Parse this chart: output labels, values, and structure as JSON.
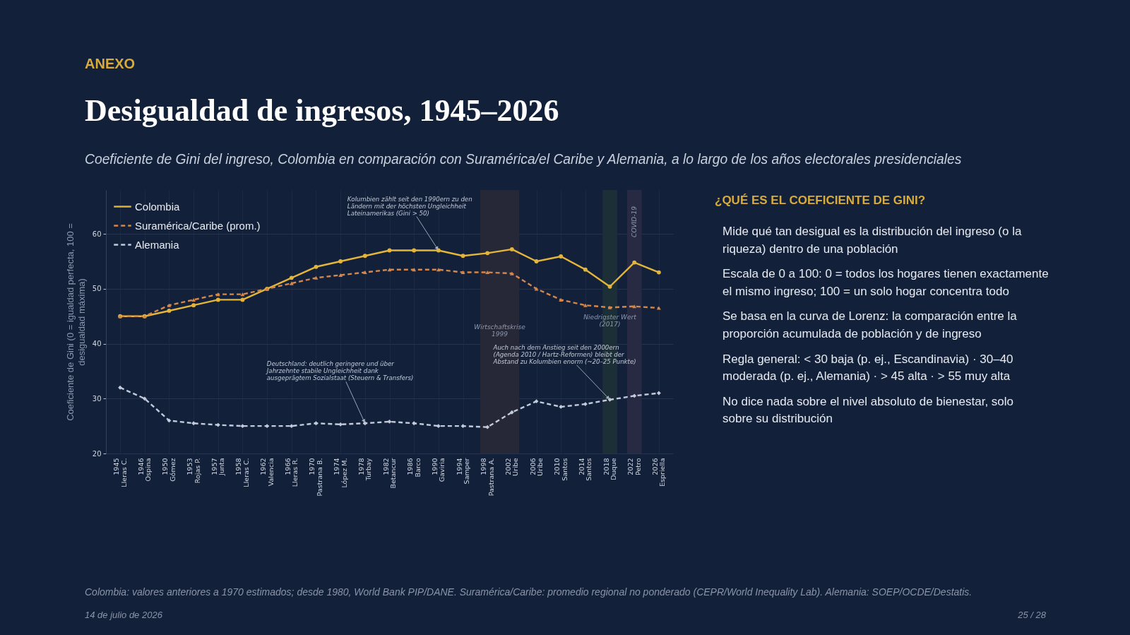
{
  "chart_data": [
    {
      "type": "line",
      "title": "Desigualdad de ingresos, 1945–2026",
      "subtitle": "Coeficiente de Gini del ingreso, Colombia en comparación con Suramérica/el Caribe y Alemania, a lo largo de los años electorales presidenciales",
      "ylabel": "Coeficiente de Gini (0 = igualdad perfecta, 100 = desigualdad máxima)",
      "categories": [
        "1945 Lleras C.",
        "1946 Ospina",
        "1950 Gómez",
        "1953 Rojas P.",
        "1957 Junta",
        "1958 Lleras C.",
        "1962 Valencia",
        "1966 Lleras R.",
        "1970 Pastrana B.",
        "1974 López M.",
        "1978 Turbay",
        "1982 Betancur",
        "1986 Barco",
        "1990 Gaviria",
        "1994 Samper",
        "1998 Pastrana A.",
        "2002 Uribe",
        "2006 Uribe",
        "2010 Santos",
        "2014 Santos",
        "2018 Duque",
        "2022 Petro",
        "2026 Espriella"
      ],
      "series": [
        {
          "name": "Colombia",
          "color": "#e3b53b",
          "marker": "circle",
          "line_style": "solid",
          "values": [
            45,
            45,
            46,
            47,
            48,
            48,
            50,
            52,
            54,
            55,
            56,
            57,
            57,
            57,
            56,
            56.5,
            57.2,
            55,
            55.9,
            53.5,
            50.4,
            54.8,
            53
          ]
        },
        {
          "name": "Suramérica/Caribe (prom.)",
          "color": "#d4874b",
          "marker": "triangle",
          "line_style": "dashed",
          "values": [
            45,
            45,
            47,
            48,
            49,
            49,
            50,
            51,
            52,
            52.5,
            53,
            53.5,
            53.5,
            53.5,
            53,
            53,
            52.8,
            50,
            48,
            47,
            46.6,
            46.8,
            46.5
          ]
        },
        {
          "name": "Alemania",
          "color": "#c3cadb",
          "marker": "diamond",
          "line_style": "dashed",
          "values": [
            32,
            30,
            26,
            25.5,
            25.2,
            25,
            25,
            25,
            25.5,
            25.3,
            25.5,
            25.8,
            25.5,
            25,
            25,
            24.8,
            27.5,
            29.5,
            28.5,
            29,
            29.8,
            30.5,
            31
          ]
        }
      ],
      "ylim": [
        20,
        68
      ],
      "yticks": [
        20,
        30,
        40,
        50,
        60
      ],
      "grid": true,
      "legend": "top left",
      "bands": [
        {
          "axis": "x",
          "from": "1998 Pastrana A.",
          "to": "2002 Uribe",
          "label": "Wirtschaftskrise 1999",
          "color": "#262838"
        },
        {
          "axis": "x",
          "from": "2018 Duque",
          "to": "2018 Duque",
          "label": "Niedrigster Wert (2017)",
          "color": "#1c2f36"
        },
        {
          "axis": "x",
          "from": "2022 Petro",
          "to": "2022 Petro",
          "label": "COVID-19",
          "color": "#272a42"
        }
      ],
      "annotations": [
        "ANEXO",
        "Colombia: valores anteriores a 1970 estimados; desde 1980, World Bank PIP/DANE. Suramérica/Caribe: promedio regional no ponderado (CEPR/World Inequality Lab). Alemania: SOEP/OCDE/Destatis.",
        "14 de julio de 2026",
        "25 / 28",
        {
          "text": "Kolumbien zählt seit den 1990ern zu den Ländern mit der höchsten Ungleichheit Lateinamerikas (Gini > 50)",
          "x": "1990 Gaviria",
          "y": 57
        },
        {
          "text": "Deutschland: deutlich geringere und über Jahrzehnte stabile Ungleichheit dank ausgeprägtem Sozialstaat (Steuern & Transfers)",
          "x": "1978 Turbay",
          "y": 25.5
        },
        {
          "text": "Auch nach dem Anstieg seit den 2000ern (Agenda 2010 / Hartz-Reformen) bleibt der Abstand zu Kolumbien enorm (~20–25 Punkte)",
          "x": "2018 Duque",
          "y": 29.8
        }
      ]
    },
    {
      "type": "other",
      "title": "¿QUÉ ES EL COEFICIENTE DE GINI?",
      "annotations": [
        "Mide qué tan desigual es la distribución del ingreso (o la riqueza) dentro de una población",
        "Escala de 0 a 100: 0 = todos los hogares tienen exactamente el mismo ingreso; 100 = un solo hogar concentra todo",
        "Se basa en la curva de Lorenz: la comparación entre la proporción acumulada de población y de ingreso",
        "Regla general: < 30 baja (p. ej., Escandinavia) · 30–40 moderada (p. ej., Alemania) · > 45 alta · > 55 muy alta",
        "No dice nada sobre el nivel absoluto de bienestar, solo sobre su distribución"
      ]
    }
  ]
}
